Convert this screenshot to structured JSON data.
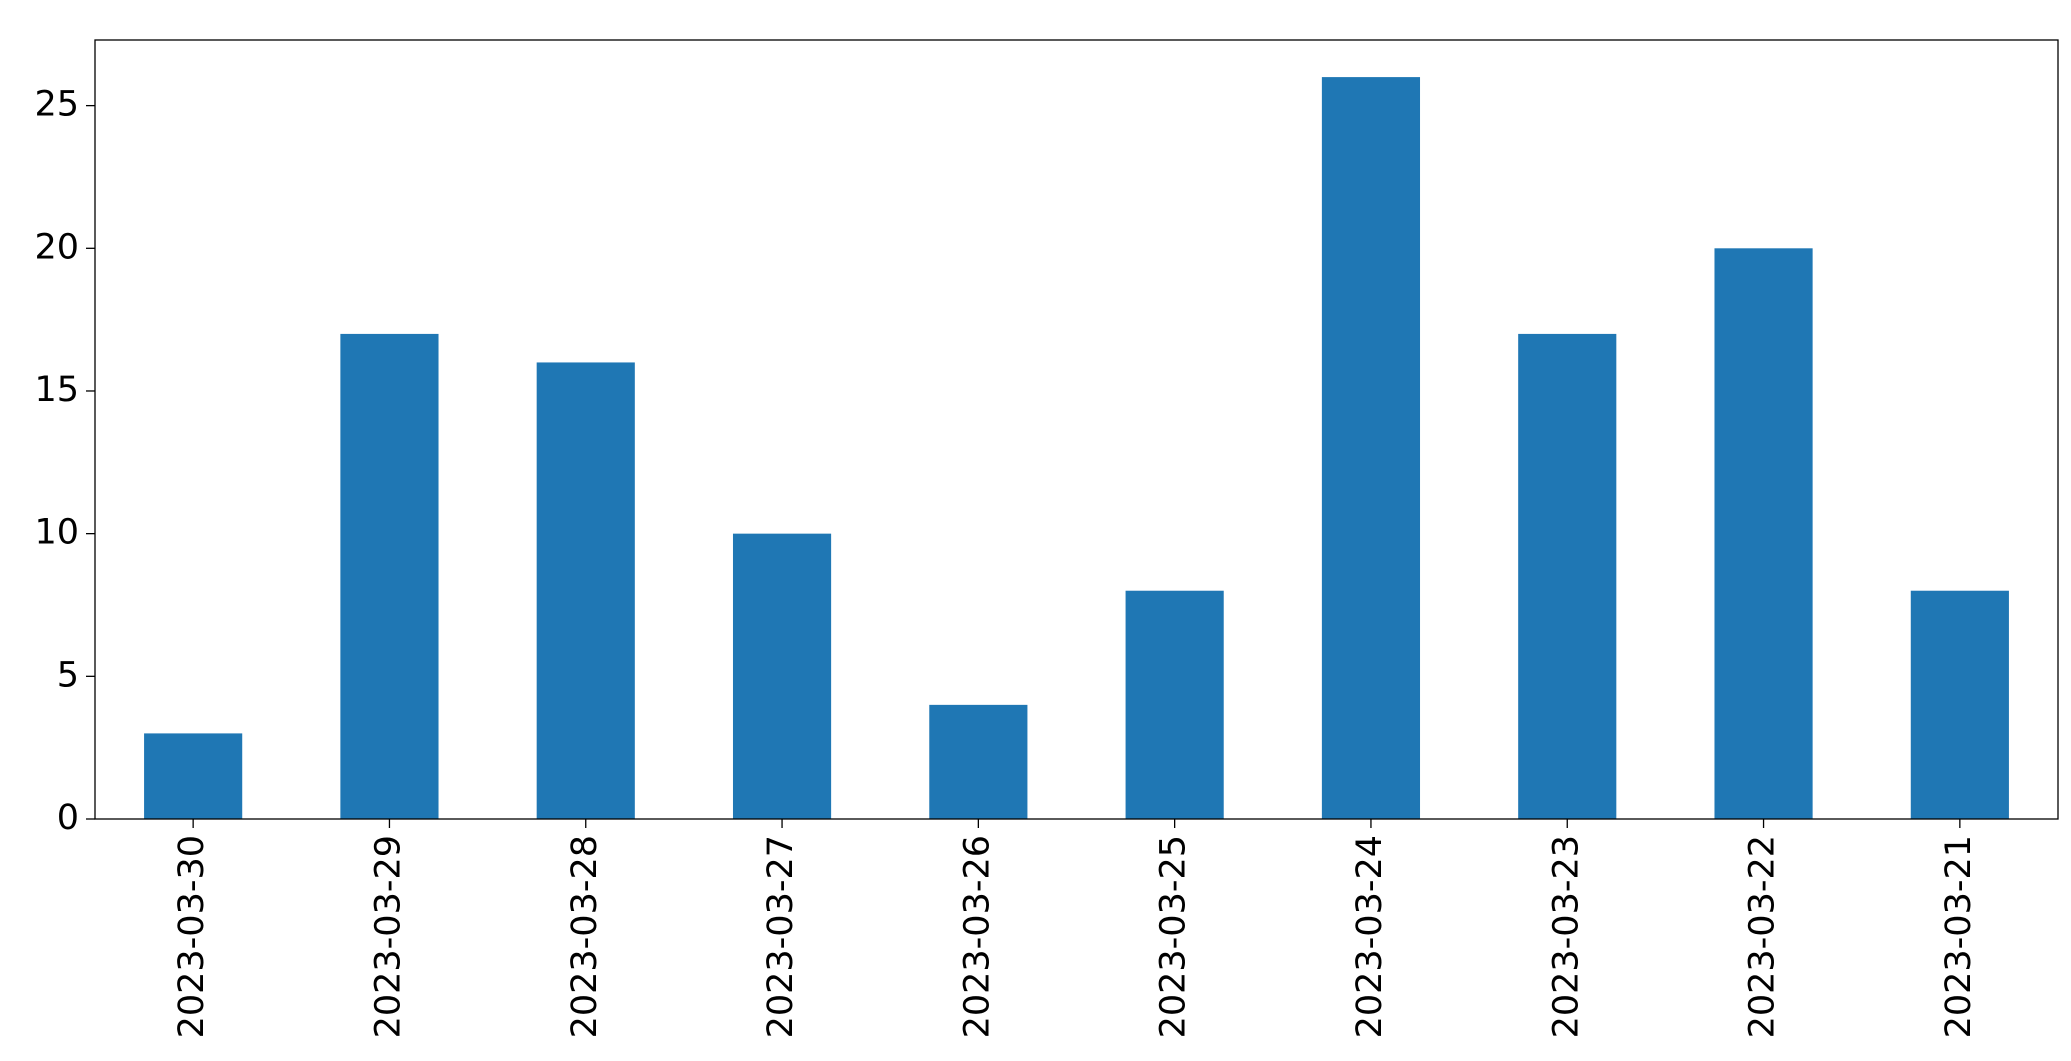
{
  "chart_data": {
    "type": "bar",
    "categories": [
      "2023-03-30",
      "2023-03-29",
      "2023-03-28",
      "2023-03-27",
      "2023-03-26",
      "2023-03-25",
      "2023-03-24",
      "2023-03-23",
      "2023-03-22",
      "2023-03-21"
    ],
    "values": [
      3,
      17,
      16,
      10,
      4,
      8,
      26,
      17,
      20,
      8
    ],
    "color": "#1f77b4",
    "ylim": [
      0,
      27.3
    ],
    "yticks": [
      0,
      5,
      10,
      15,
      20,
      25
    ],
    "grid": false
  }
}
